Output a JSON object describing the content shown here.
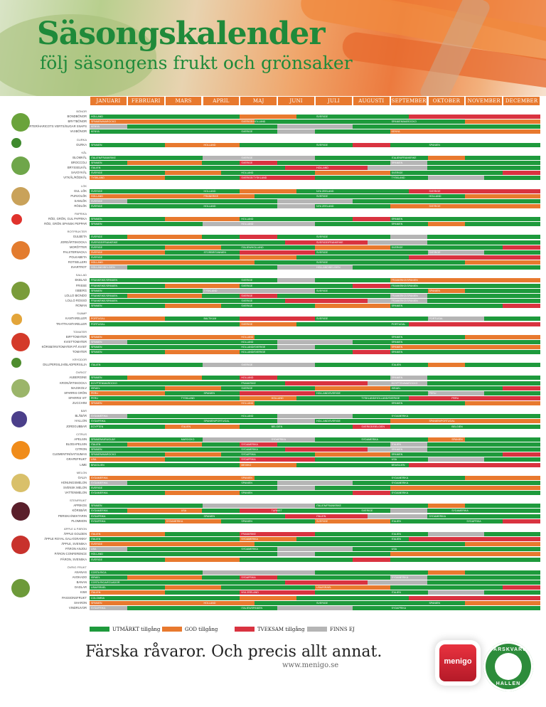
{
  "header": {
    "title": "Säsongskalender",
    "subtitle": "följ säsongens frukt och grönsaker"
  },
  "months": [
    "JANUARI",
    "FEBRUARI",
    "MARS",
    "APRIL",
    "MAJ",
    "JUNI",
    "JULI",
    "AUGUSTI",
    "SEPTEMBER",
    "OKTOBER",
    "NOVEMBER",
    "DECEMBER"
  ],
  "colors": {
    "utmarkt": "#1e9a3c",
    "god": "#e8792e",
    "tveksam": "#d93340",
    "finns_ej": "#b5b5b5"
  },
  "sections": [
    {
      "name": "BÖNOR",
      "rows": [
        {
          "label": "BONDBÖNOR",
          "notes": [
            "HOLLAND",
            "SVERIGE"
          ]
        },
        {
          "label": "BRYTBÖNOR",
          "notes": [
            "SPANIEN/MAROCKO",
            "SVERIGE/HOLLAND",
            "SPANIEN/MAROCKO"
          ]
        },
        {
          "label": "SOCKERÄRTER/HARICOTS VERTS/SUGAR SNAPS",
          "notes": [
            "KENYA"
          ]
        },
        {
          "label": "VAXBÖNOR",
          "notes": [
            "KENYA",
            "SVERIGE",
            "KENYA"
          ]
        }
      ]
    },
    {
      "name": "GURKA",
      "rows": [
        {
          "label": "GURKA",
          "notes": [
            "SPANIEN",
            "HOLLAND",
            "SVERIGE",
            "SPANIEN"
          ]
        }
      ]
    },
    {
      "name": "KÅL",
      "rows": [
        {
          "label": "BLOMKÅL",
          "notes": [
            "ITALIEN/FRANKRIKE",
            "SVERIGE",
            "ITALIEN/FRANKRIKE"
          ]
        },
        {
          "label": "BROCCOLI",
          "notes": [
            "SPANIEN",
            "SVERIGE",
            "SPANIEN"
          ]
        },
        {
          "label": "BRYSSELKÅL",
          "notes": [
            "ITALIEN",
            "HOLLAND"
          ]
        },
        {
          "label": "SAVOYKÅL",
          "notes": [
            "SVERIGE",
            "HOLLAND",
            "SVERIGE"
          ]
        },
        {
          "label": "VITKÅL/RÖDKÅL",
          "notes": [
            "TYSKLAND",
            "SVERIGE/TYSKLAND",
            "TYSKLAND"
          ]
        }
      ]
    },
    {
      "name": "LÖK",
      "rows": [
        {
          "label": "GUL LÖK",
          "notes": [
            "SVERIGE",
            "HOLLAND",
            "NYA ZEELAND",
            "SVERIGE"
          ]
        },
        {
          "label": "PURJOLÖK",
          "notes": [
            "HOLLAND",
            "FRANKRIKE",
            "SVERIGE",
            "HOLLAND"
          ]
        },
        {
          "label": "SAMLÖK",
          "notes": [
            "SVERIGE"
          ]
        },
        {
          "label": "RÖDLÖK",
          "notes": [
            "SVERIGE",
            "HOLLAND",
            "NYA ZEELAND",
            "SVERIGE"
          ]
        }
      ]
    },
    {
      "name": "PAPRIKA",
      "rows": [
        {
          "label": "RÖD, GRÖN, GUL PAPRIKA",
          "notes": [
            "SPANIEN",
            "HOLLAND",
            "SPANIEN"
          ]
        },
        {
          "label": "RÖD, GRÖN SPANSK PEPPAR",
          "notes": [
            "SPANIEN",
            "HOLLAND",
            "SPANIEN"
          ]
        }
      ]
    },
    {
      "name": "ROTFRUKTER",
      "rows": [
        {
          "label": "GULBETA",
          "notes": [
            "SVERIGE",
            "SVERIGE"
          ]
        },
        {
          "label": "JORDÄRTSKOCKA",
          "notes": [
            "SVERIGE/FRANKRIKE",
            "SVERIGE/FRANKRIKE"
          ]
        },
        {
          "label": "MORÖTTER",
          "notes": [
            "SVERIGE",
            "ITALIEN/HOLLAND",
            "SVERIGE"
          ]
        },
        {
          "label": "PALSTERNACKA",
          "notes": [
            "SVERIGE",
            "STORBRITANNIEN",
            "SVERIGE",
            "SVERIGE"
          ]
        },
        {
          "label": "POLKABETA",
          "notes": [
            "SVERIGE"
          ]
        },
        {
          "label": "ROTSELLERI",
          "notes": [
            "HOLLAND",
            "SVERIGE"
          ]
        },
        {
          "label": "SVARTROT",
          "notes": [
            "HOLLAND/BELGIEN",
            "HOLLAND/BELGIEN"
          ]
        }
      ]
    },
    {
      "name": "SALLAD",
      "rows": [
        {
          "label": "EKBLAD",
          "notes": [
            "FRANKRIKE/SPANIEN",
            "SVERIGE",
            "FRANKRIKE/SPANIEN"
          ]
        },
        {
          "label": "FRISSE",
          "notes": [
            "FRANKRIKE/SPANIEN",
            "SVERIGE",
            "FRANKRIKE/SPANIEN"
          ]
        },
        {
          "label": "ISBERG",
          "notes": [
            "SPANIEN",
            "TYSKLAND",
            "SVERIGE",
            "SPANIEN"
          ]
        },
        {
          "label": "LOLLO BIONDO",
          "notes": [
            "FRANKRIKE/SPANIEN",
            "SVERIGE",
            "FRANKRIKE/SPANIEN"
          ]
        },
        {
          "label": "LOLLO ROSSO",
          "notes": [
            "FRANKRIKE/SPANIEN",
            "SVERIGE",
            "FRANKRIKE/SPANIEN"
          ]
        },
        {
          "label": "ROMAN",
          "notes": [
            "SPANIEN",
            "SVERIGE",
            "SPANIEN"
          ]
        }
      ]
    },
    {
      "name": "SVAMP",
      "rows": [
        {
          "label": "KANTARELLER",
          "notes": [
            "PORTUGAL",
            "BALTIKUM",
            "SVERIGE",
            "PORTUGAL"
          ]
        },
        {
          "label": "TRATTKANTARELLER",
          "notes": [
            "PORTUGAL",
            "SVERIGE",
            "PORTUGAL"
          ]
        }
      ]
    },
    {
      "name": "TOMATER",
      "rows": [
        {
          "label": "BIFFTOMATER",
          "notes": [
            "SPANIEN",
            "HOLLAND",
            "SPANIEN"
          ]
        },
        {
          "label": "KVISTTOMATER",
          "notes": [
            "SPANIEN",
            "HOLLAND",
            "SPANIEN"
          ]
        },
        {
          "label": "KÖRSBÄRSTOMATER PÅ KVIST",
          "notes": [
            "SPANIEN",
            "HOLLAND/SVERIGE",
            "SPANIEN"
          ]
        },
        {
          "label": "TOMATER",
          "notes": [
            "SPANIEN",
            "HOLLAND/SVERIGE",
            "SPANIEN"
          ]
        }
      ]
    },
    {
      "name": "KRYDDOR",
      "rows": [
        {
          "label": "DILL/PERSILJA/BLADPERSILJA",
          "notes": [
            "ITALIEN",
            "SVERIGE",
            "ITALIEN"
          ]
        }
      ]
    },
    {
      "name": "ÖVRIGT",
      "rows": [
        {
          "label": "AUBERGINE",
          "notes": [
            "SPANIEN",
            "HOLLAND",
            "SPANIEN"
          ]
        },
        {
          "label": "KRONÄRTSKOCKA",
          "notes": [
            "EGYPTEN/MAROCKO",
            "FRANKRIKE",
            "EGYPTEN/MAROCKO"
          ]
        },
        {
          "label": "MAJSKOLV",
          "notes": [
            "ISRAEL",
            "SVERIGE",
            "ISRAEL"
          ]
        },
        {
          "label": "SPARRIS GRÖN",
          "notes": [
            "PERU",
            "SPANIEN",
            "HOLLAND/SVERIGE",
            "PERU"
          ]
        },
        {
          "label": "SPARRIS VIT",
          "notes": [
            "PERU",
            "TYSKLAND",
            "HOLLAND",
            "TYSKLAND/HOLLAND/SVERIGE",
            "PERU"
          ]
        },
        {
          "label": "ZUCCHINI",
          "notes": [
            "SPANIEN",
            "HOLLAND",
            "SPANIEN"
          ]
        }
      ]
    },
    {
      "name": "BÄR",
      "rows": [
        {
          "label": "BLÅBÄR",
          "notes": [
            "SYDAMERIKA",
            "HOLLAND",
            "SYDAMERIKA"
          ]
        },
        {
          "label": "HALLON",
          "notes": [
            "SYDAFRIKA",
            "SPANIEN/PORTUGAL",
            "HOLLAND/SVERIGE",
            "SPANIEN/PORTUGAL"
          ]
        },
        {
          "label": "JORDGUBBAR",
          "notes": [
            "EGYPTEN",
            "ITALIEN",
            "BELGIEN",
            "SVERIGE/BELGIEN",
            "BELGIEN"
          ]
        }
      ]
    },
    {
      "name": "CITRUS",
      "rows": [
        {
          "label": "APELSIN",
          "notes": [
            "SPANIEN/URUGUAY",
            "MAROCKO",
            "SYDAFRIKA",
            "SYDAMERIKA",
            "SPANIEN"
          ]
        },
        {
          "label": "BLODAPELSIN",
          "notes": [
            "ITALIEN",
            "SYDAMERIKA",
            "ITALIEN"
          ]
        },
        {
          "label": "CITRON",
          "notes": [
            "SPANIEN",
            "SYDAMERIKA",
            "SPANIEN"
          ]
        },
        {
          "label": "CLEMENTIN/SATSUMAS",
          "notes": [
            "SPANIEN/MAROCKO",
            "SYDAFRIKA",
            "SPANIEN"
          ]
        },
        {
          "label": "GRAPEFRUKT",
          "notes": [
            "USA",
            "SYDAFRIKA",
            "USA"
          ]
        },
        {
          "label": "LIME",
          "notes": [
            "BRASILIEN",
            "MEXIKO",
            "BRASILIEN"
          ]
        }
      ]
    },
    {
      "name": "MELON",
      "rows": [
        {
          "label": "GALIA",
          "notes": [
            "SYDAMERIKA",
            "SPANIEN",
            "SYDAMERIKA"
          ]
        },
        {
          "label": "HONUNGSMELON",
          "notes": [
            "SYDAMERIKA",
            "SPANIEN",
            "SYDAMERIKA"
          ]
        },
        {
          "label": "SVENSK MELON",
          "notes": [
            "SVERIGE"
          ]
        },
        {
          "label": "VATTENMELON",
          "notes": [
            "SYDAMERIKA",
            "SPANIEN",
            "SYDAMERIKA"
          ]
        }
      ]
    },
    {
      "name": "STENFRUKT",
      "rows": [
        {
          "label": "APRIKOS",
          "notes": [
            "SPANIEN",
            "ITALIEN/FRANKRIKE"
          ]
        },
        {
          "label": "KÖRSBÄR",
          "notes": [
            "SYDAMERIKA",
            "USA",
            "TURKIET",
            "SVERIGE",
            "SYDAMERIKA"
          ]
        },
        {
          "label": "PERSIKA/NEKTARIN",
          "notes": [
            "SYDAFRIKA",
            "SPANIEN",
            "ITALIEN",
            "SYDAMERIKA"
          ]
        },
        {
          "label": "PLOMMON",
          "notes": [
            "SYDAFRIKA",
            "SYDAMERIKA",
            "SPANIEN",
            "SVERIGE",
            "ITALIEN",
            "SYDAFRIKA"
          ]
        }
      ]
    },
    {
      "name": "ÄPPLE & PÄRON",
      "rows": [
        {
          "label": "ÄPPLE GOLDEN",
          "notes": [
            "ITALIEN",
            "FRANKRIKE",
            "ITALIEN"
          ]
        },
        {
          "label": "ÄPPLE ROYAL GALA/GRANNY",
          "notes": [
            "ITALIEN",
            "SYDAMERIKA",
            "ITALIEN"
          ]
        },
        {
          "label": "ÄPPLE, SVENSKA",
          "notes": [
            "SVERIGE"
          ]
        },
        {
          "label": "PÄRON ANJOU",
          "notes": [
            "USA",
            "SYDAMERIKA",
            "USA"
          ]
        },
        {
          "label": "PÄRON CONFERENCE",
          "notes": [
            "HOLLAND"
          ]
        },
        {
          "label": "PÄRON, SVENSKA",
          "notes": [
            "SVERIGE"
          ]
        }
      ]
    },
    {
      "name": "ÖVRIG FRUKT",
      "rows": [
        {
          "label": "ANANAS",
          "notes": [
            "COSTA RICA"
          ]
        },
        {
          "label": "AVOKADO",
          "notes": [
            "ISRAEL",
            "SYDAFRIKA",
            "SYDAMERIKA"
          ]
        },
        {
          "label": "BANAN",
          "notes": [
            "COSTA RICA/ECUADOR"
          ]
        },
        {
          "label": "DADLAR",
          "notes": [
            "USA/ISRAEL",
            "USA/ISRAEL"
          ]
        },
        {
          "label": "KIWI",
          "notes": [
            "ITALIEN",
            "NYA ZEELAND",
            "ITALIEN"
          ]
        },
        {
          "label": "PASSIONSFRUKT",
          "notes": [
            "COLOMBIA"
          ]
        },
        {
          "label": "SHARON",
          "notes": [
            "SPANIEN",
            "HOLLAND",
            "SVERIGE",
            "SPANIEN"
          ]
        },
        {
          "label": "VINDRUVOR",
          "notes": [
            "SYDAFRIKA",
            "ITALIEN/SPANIEN",
            "SYDAFRIKA"
          ]
        }
      ]
    }
  ],
  "legend": [
    {
      "key": "utmarkt",
      "label": "UTMÄRKT tillgång"
    },
    {
      "key": "god",
      "label": "GOD tillgång"
    },
    {
      "key": "tveksam",
      "label": "TVEKSAM tillgång"
    },
    {
      "key": "finns_ej",
      "label": "FINNS EJ"
    }
  ],
  "footer": {
    "tagline": "Färska råvaror. Och precis allt annat.",
    "url": "www.menigo.se",
    "logo_text": "menigo",
    "badge_top": "FÄRSKVARU",
    "badge_bottom": "HALLEN"
  }
}
